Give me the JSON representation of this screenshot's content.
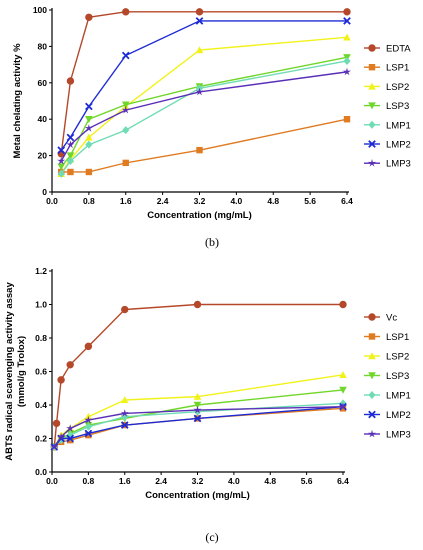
{
  "chart_data": [
    {
      "type": "line",
      "caption": "",
      "xlabel": "Concentration (mg/mL)",
      "ylabel": "Metal chelating activity %",
      "xlim": [
        0,
        6.4
      ],
      "ylim": [
        0,
        100
      ],
      "xticks": [
        "0.0",
        "0.8",
        "1.6",
        "2.4",
        "3.2",
        "4.0",
        "4.8",
        "5.6",
        "6.4"
      ],
      "yticks": [
        "0",
        "20",
        "40",
        "60",
        "80",
        "100"
      ],
      "legend_position": "right",
      "series": [
        {
          "name": "EDTA",
          "color": "#b5482a",
          "marker": "circle",
          "x": [
            0.2,
            0.4,
            0.8,
            1.6,
            3.2,
            6.4
          ],
          "y": [
            21,
            61,
            96,
            99,
            99,
            99
          ]
        },
        {
          "name": "LSP1",
          "color": "#e07b22",
          "marker": "square",
          "x": [
            0.2,
            0.4,
            0.8,
            1.6,
            3.2,
            6.4
          ],
          "y": [
            11,
            11,
            11,
            16,
            23,
            40
          ]
        },
        {
          "name": "LSP2",
          "color": "#f2f21b",
          "marker": "triangle-up",
          "x": [
            0.2,
            0.4,
            0.8,
            1.6,
            3.2,
            6.4
          ],
          "y": [
            10,
            18,
            30,
            47,
            78,
            85
          ]
        },
        {
          "name": "LSP3",
          "color": "#6fd62a",
          "marker": "triangle-down",
          "x": [
            0.2,
            0.4,
            0.8,
            1.6,
            3.2,
            6.4
          ],
          "y": [
            14,
            20,
            40,
            48,
            58,
            74
          ]
        },
        {
          "name": "LMP1",
          "color": "#6fdcb4",
          "marker": "diamond",
          "x": [
            0.2,
            0.4,
            0.8,
            1.6,
            3.2,
            6.4
          ],
          "y": [
            10,
            17,
            26,
            34,
            57,
            72
          ]
        },
        {
          "name": "LMP2",
          "color": "#1d2bd6",
          "marker": "x",
          "x": [
            0.2,
            0.4,
            0.8,
            1.6,
            3.2,
            6.4
          ],
          "y": [
            23,
            30,
            47,
            75,
            94,
            94
          ]
        },
        {
          "name": "LMP3",
          "color": "#5a2fb8",
          "marker": "star",
          "x": [
            0.2,
            0.4,
            0.8,
            1.6,
            3.2,
            6.4
          ],
          "y": [
            17,
            26,
            35,
            45,
            55,
            66
          ]
        }
      ]
    },
    {
      "type": "line",
      "caption": "(b)",
      "xlabel": "Concentration (mg/mL)",
      "ylabel": "ABTS radical scavenging activity assay\n(mmol/g Trolox)",
      "xlim": [
        0,
        6.4
      ],
      "ylim": [
        0,
        1.2
      ],
      "xticks": [
        "0.0",
        "0.8",
        "1.6",
        "2.4",
        "3.2",
        "4.0",
        "4.8",
        "5.6",
        "6.4"
      ],
      "yticks": [
        "0.0",
        "0.2",
        "0.4",
        "0.6",
        "0.8",
        "1.0",
        "1.2"
      ],
      "legend_position": "right",
      "series": [
        {
          "name": "Vc",
          "color": "#b5482a",
          "marker": "circle",
          "x": [
            0.05,
            0.1,
            0.2,
            0.4,
            0.8,
            1.6,
            3.2,
            6.4
          ],
          "y": [
            0.15,
            0.29,
            0.55,
            0.64,
            0.75,
            0.97,
            1.0,
            1.0
          ]
        },
        {
          "name": "LSP1",
          "color": "#e07b22",
          "marker": "square",
          "x": [
            0.05,
            0.2,
            0.4,
            0.8,
            1.6,
            3.2,
            6.4
          ],
          "y": [
            0.15,
            0.18,
            0.19,
            0.22,
            0.28,
            0.32,
            0.38
          ]
        },
        {
          "name": "LSP2",
          "color": "#f2f21b",
          "marker": "triangle-up",
          "x": [
            0.05,
            0.2,
            0.4,
            0.8,
            1.6,
            3.2,
            6.4
          ],
          "y": [
            0.15,
            0.22,
            0.26,
            0.33,
            0.43,
            0.45,
            0.58
          ]
        },
        {
          "name": "LSP3",
          "color": "#6fd62a",
          "marker": "triangle-down",
          "x": [
            0.05,
            0.2,
            0.4,
            0.8,
            1.6,
            3.2,
            6.4
          ],
          "y": [
            0.15,
            0.2,
            0.23,
            0.28,
            0.32,
            0.4,
            0.49
          ]
        },
        {
          "name": "LMP1",
          "color": "#6fdcb4",
          "marker": "diamond",
          "x": [
            0.05,
            0.2,
            0.4,
            0.8,
            1.6,
            3.2,
            6.4
          ],
          "y": [
            0.15,
            0.19,
            0.22,
            0.27,
            0.33,
            0.36,
            0.41
          ]
        },
        {
          "name": "LMP2",
          "color": "#1d2bd6",
          "marker": "x",
          "x": [
            0.05,
            0.2,
            0.4,
            0.8,
            1.6,
            3.2,
            6.4
          ],
          "y": [
            0.15,
            0.2,
            0.2,
            0.23,
            0.28,
            0.32,
            0.39
          ]
        },
        {
          "name": "LMP3",
          "color": "#5a2fb8",
          "marker": "star",
          "x": [
            0.05,
            0.2,
            0.4,
            0.8,
            1.6,
            3.2,
            6.4
          ],
          "y": [
            0.15,
            0.21,
            0.26,
            0.31,
            0.35,
            0.37,
            0.39
          ]
        }
      ]
    }
  ],
  "captions": {
    "bottom": "(c)"
  }
}
